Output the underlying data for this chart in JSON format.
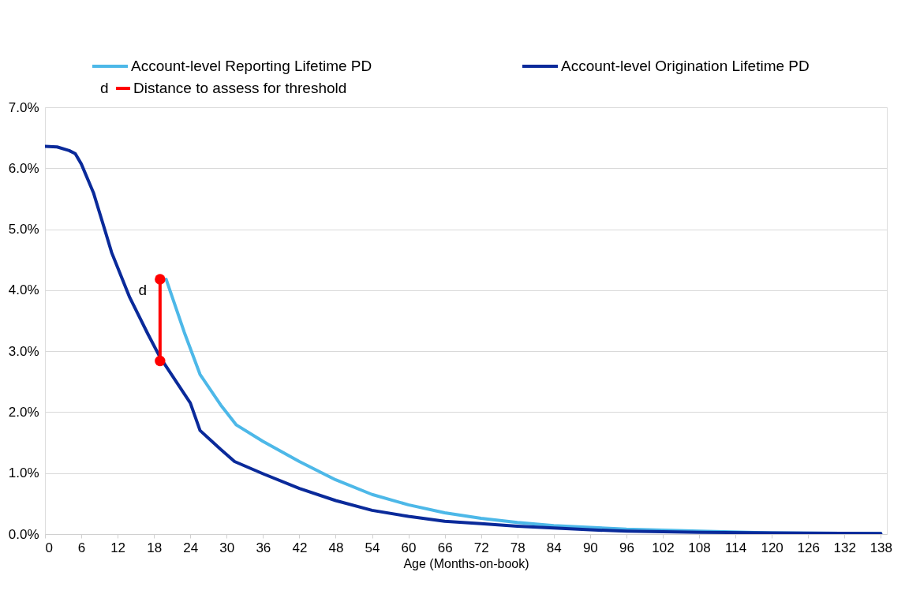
{
  "chart_data": {
    "type": "line",
    "xlabel": "Age (Months-on-book)",
    "series": [
      {
        "name": "Account-level Reporting Lifetime PD",
        "color": "#4db8e8",
        "x": [
          20,
          23,
          25.6,
          29,
          31.6,
          36,
          42,
          48,
          54,
          60,
          66,
          72,
          78,
          84,
          90,
          96,
          108,
          120,
          138
        ],
        "values": [
          4.18,
          3.31,
          2.62,
          2.12,
          1.79,
          1.52,
          1.19,
          0.89,
          0.65,
          0.48,
          0.35,
          0.26,
          0.19,
          0.14,
          0.11,
          0.08,
          0.05,
          0.02,
          0.01
        ]
      },
      {
        "name": "Account-level Origination Lifetime PD",
        "color": "#0a2a9a",
        "x": [
          0,
          2,
          4,
          5,
          6,
          8,
          10,
          11,
          14,
          17,
          19,
          20,
          22,
          24,
          25.6,
          29,
          31.3,
          36,
          42,
          48,
          54,
          60,
          66,
          72,
          78,
          84,
          90,
          96,
          108,
          120,
          138
        ],
        "values": [
          6.36,
          6.35,
          6.29,
          6.24,
          6.07,
          5.6,
          4.95,
          4.62,
          3.88,
          3.28,
          2.9,
          2.75,
          2.45,
          2.15,
          1.7,
          1.39,
          1.19,
          0.99,
          0.75,
          0.55,
          0.39,
          0.29,
          0.21,
          0.17,
          0.13,
          0.1,
          0.07,
          0.05,
          0.03,
          0.02,
          0.01
        ]
      },
      {
        "name": "Distance to assess for threshold",
        "color": "#ff0000",
        "marker": "circle",
        "x": [
          19,
          19
        ],
        "values": [
          2.84,
          4.18
        ]
      }
    ],
    "annotations": [
      "d"
    ],
    "xlim": [
      0,
      139
    ],
    "xticks": [
      0,
      6,
      12,
      18,
      24,
      30,
      36,
      42,
      48,
      54,
      60,
      66,
      72,
      78,
      84,
      90,
      96,
      102,
      108,
      114,
      120,
      126,
      132,
      138
    ],
    "ylim": [
      0,
      7
    ],
    "yticks": [
      {
        "value": 0,
        "label": "0.0%"
      },
      {
        "value": 1,
        "label": "1.0%"
      },
      {
        "value": 2,
        "label": "2.0%"
      },
      {
        "value": 3,
        "label": "3.0%"
      },
      {
        "value": 4,
        "label": "4.0%"
      },
      {
        "value": 5,
        "label": "5.0%"
      },
      {
        "value": 6,
        "label": "6.0%"
      },
      {
        "value": 7,
        "label": "7.0%"
      }
    ],
    "grid": "y",
    "legend": "top",
    "marker": "none",
    "line_style": "solid"
  }
}
